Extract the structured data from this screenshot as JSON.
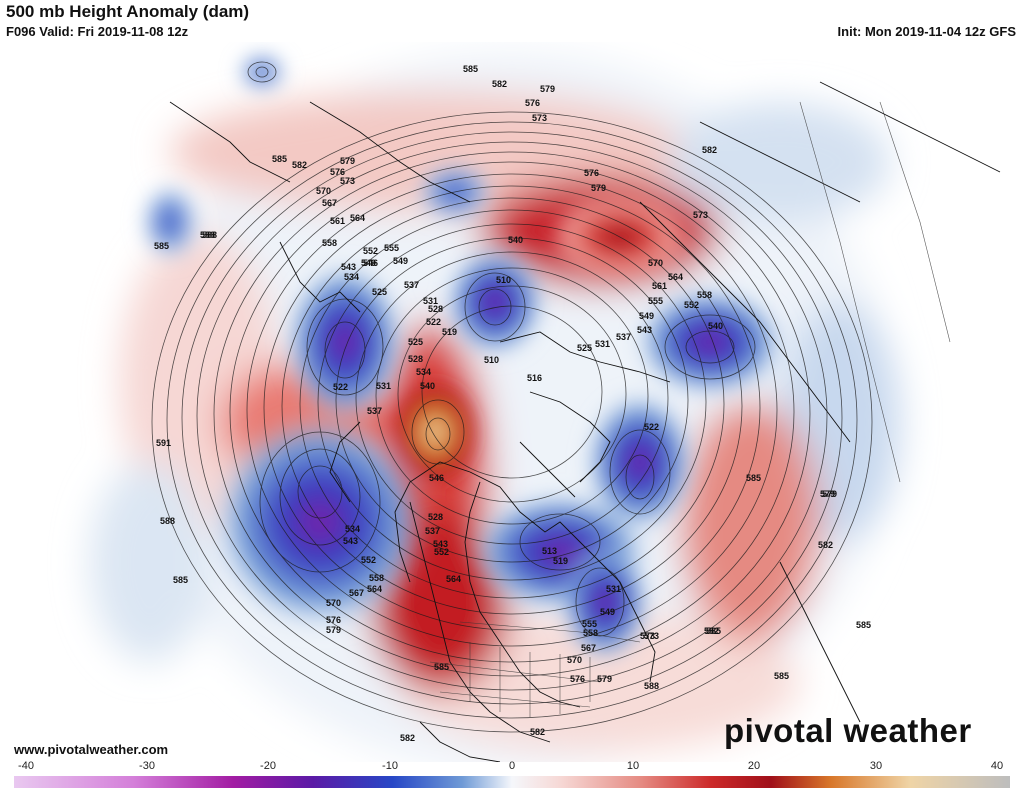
{
  "header": {
    "title": "500 mb Height Anomaly (dam)",
    "valid": "F096 Valid: Fri 2019-11-08 12z",
    "init": "Init: Mon 2019-11-04 12z GFS"
  },
  "footer": {
    "website": "www.pivotalweather.com",
    "logo_text": "pivotal weather"
  },
  "colorbar": {
    "ticks": [
      "-40",
      "-30",
      "-20",
      "-10",
      "0",
      "10",
      "20",
      "30",
      "40"
    ],
    "negative_colors": [
      "#e9c8f0",
      "#d47fd9",
      "#a21ca3",
      "#5b1aa6",
      "#2747c6",
      "#6f9ad6",
      "#c7d8ee"
    ],
    "positive_colors": [
      "#f6d7d4",
      "#e58a82",
      "#cc2a2a",
      "#a0101a",
      "#d8772a",
      "#efd4a6",
      "#bdbdbd"
    ]
  },
  "contour_labels": [
    "585",
    "582",
    "579",
    "576",
    "573",
    "585",
    "582",
    "579",
    "576",
    "573",
    "570",
    "567",
    "561",
    "564",
    "558",
    "555",
    "552",
    "549",
    "546",
    "543",
    "534",
    "525",
    "540",
    "537",
    "531",
    "528",
    "522",
    "519",
    "510",
    "516",
    "510",
    "576",
    "579",
    "573",
    "570",
    "564",
    "561",
    "558",
    "555",
    "552",
    "549",
    "543",
    "537",
    "531",
    "525",
    "540",
    "522",
    "534",
    "525",
    "528",
    "531",
    "537",
    "540",
    "546",
    "549",
    "522",
    "591",
    "588",
    "585",
    "534",
    "543",
    "552",
    "558",
    "564",
    "567",
    "570",
    "576",
    "579",
    "588",
    "585",
    "582",
    "579",
    "585",
    "513",
    "519",
    "528",
    "531",
    "537",
    "543",
    "552",
    "549",
    "555",
    "558",
    "564",
    "567",
    "570",
    "573",
    "576",
    "579",
    "585",
    "588",
    "582",
    "582",
    "585",
    "585",
    "579",
    "582",
    "585",
    "588",
    "573",
    "582"
  ]
}
